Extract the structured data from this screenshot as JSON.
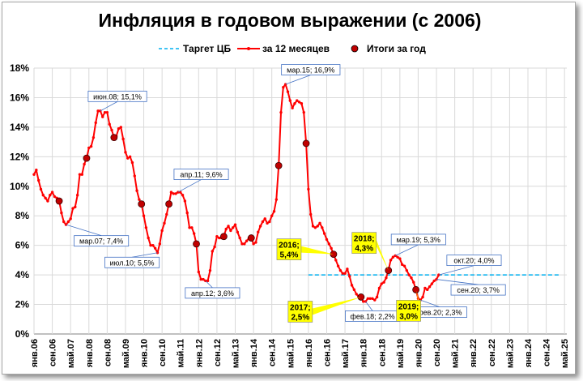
{
  "chart_data": {
    "type": "line",
    "title": "Инфляция в годовом выражении (с 2006)",
    "xlabel": "",
    "ylabel": "",
    "ylim": [
      0,
      18
    ],
    "yticks": [
      "0%",
      "2%",
      "4%",
      "6%",
      "8%",
      "10%",
      "12%",
      "14%",
      "16%",
      "18%"
    ],
    "xticks": [
      "янв.06",
      "сен.06",
      "май.07",
      "янв.08",
      "сен.08",
      "май.09",
      "янв.10",
      "сен.10",
      "май.11",
      "янв.12",
      "сен.12",
      "май.13",
      "янв.14",
      "сен.14",
      "май.15",
      "янв.16",
      "сен.16",
      "май.17",
      "янв.18",
      "сен.18",
      "май.19",
      "янв.20",
      "сен.20",
      "май.21",
      "янв.22",
      "сен.22",
      "май.23",
      "янв.24",
      "сен.24",
      "май.25"
    ],
    "grid": true,
    "legend_position": "top",
    "legend": {
      "target": "Таргет ЦБ",
      "monthly": "за 12 месяцев",
      "yearly": "Итоги за год"
    },
    "colors": {
      "monthly": "#ff0000",
      "target": "#00b0f0",
      "yearly": "#c00000",
      "yellow_box": "#ffff00"
    },
    "target_line": {
      "y": 4.0,
      "x_from": 120,
      "x_to": 230
    },
    "series": [
      {
        "name": "за 12 месяцев",
        "x_unit": "months since янв.06",
        "values": [
          10.8,
          11.1,
          10.4,
          9.8,
          9.4,
          9.2,
          9.0,
          9.4,
          9.6,
          9.3,
          9.2,
          9.0,
          8.2,
          7.6,
          7.4,
          7.6,
          7.8,
          8.5,
          8.6,
          9.4,
          10.8,
          10.8,
          11.5,
          11.9,
          12.6,
          12.7,
          13.3,
          14.3,
          15.1,
          15.1,
          14.7,
          15.0,
          15.0,
          14.2,
          13.8,
          13.3,
          13.4,
          13.9,
          14.0,
          13.2,
          12.3,
          11.9,
          12.0,
          11.6,
          10.7,
          9.7,
          9.1,
          8.8,
          8.0,
          7.2,
          6.5,
          6.0,
          6.0,
          5.8,
          5.5,
          6.1,
          7.0,
          7.5,
          8.1,
          8.8,
          9.6,
          9.5,
          9.5,
          9.6,
          9.6,
          9.4,
          9.0,
          8.2,
          7.2,
          7.2,
          6.8,
          6.1,
          4.2,
          3.7,
          3.7,
          3.6,
          3.6,
          4.3,
          5.6,
          5.9,
          6.6,
          6.5,
          6.5,
          6.6,
          7.1,
          7.3,
          7.0,
          7.2,
          7.4,
          6.9,
          6.5,
          6.1,
          6.1,
          6.3,
          6.5,
          6.5,
          6.1,
          6.2,
          6.9,
          7.3,
          7.6,
          7.8,
          7.5,
          7.6,
          8.0,
          8.3,
          9.1,
          11.4,
          15.0,
          16.7,
          16.9,
          16.4,
          15.8,
          15.3,
          15.6,
          15.8,
          15.7,
          15.6,
          15.0,
          12.9,
          9.8,
          8.1,
          7.3,
          7.2,
          7.3,
          7.5,
          7.2,
          6.8,
          6.4,
          6.1,
          5.8,
          5.4,
          5.0,
          4.6,
          4.3,
          4.1,
          4.1,
          4.4,
          3.9,
          3.3,
          3.0,
          2.7,
          2.5,
          2.5,
          2.2,
          2.2,
          2.4,
          2.4,
          2.4,
          2.3,
          2.5,
          3.1,
          3.4,
          3.5,
          3.8,
          4.3,
          5.0,
          5.2,
          5.3,
          5.2,
          5.1,
          4.7,
          4.6,
          4.3,
          4.0,
          3.8,
          3.5,
          3.0,
          2.4,
          2.3,
          2.5,
          3.1,
          3.0,
          3.2,
          3.4,
          3.6,
          3.7,
          4.0
        ]
      },
      {
        "name": "Итоги за год",
        "points": [
          {
            "x": 11,
            "y": 9.0
          },
          {
            "x": 23,
            "y": 11.9
          },
          {
            "x": 35,
            "y": 13.3
          },
          {
            "x": 47,
            "y": 8.8
          },
          {
            "x": 59,
            "y": 8.8
          },
          {
            "x": 71,
            "y": 6.1
          },
          {
            "x": 83,
            "y": 6.6
          },
          {
            "x": 95,
            "y": 6.5
          },
          {
            "x": 107,
            "y": 11.4
          },
          {
            "x": 119,
            "y": 12.9
          },
          {
            "x": 131,
            "y": 5.4
          },
          {
            "x": 143,
            "y": 2.5
          },
          {
            "x": 155,
            "y": 4.3
          },
          {
            "x": 167,
            "y": 3.0
          }
        ]
      }
    ],
    "annotations": [
      {
        "label": "мар.07; 7,4%",
        "x": 14,
        "y": 7.4
      },
      {
        "label": "июн.08; 15,1%",
        "x": 29,
        "y": 15.1
      },
      {
        "label": "июл.10; 5,5%",
        "x": 54,
        "y": 5.5
      },
      {
        "label": "апр.11; 9,6%",
        "x": 63,
        "y": 9.6
      },
      {
        "label": "апр.12; 3,6%",
        "x": 75,
        "y": 3.6
      },
      {
        "label": "мар.15; 16,9%",
        "x": 110,
        "y": 16.9
      },
      {
        "label": "фев.18; 2,2%",
        "x": 145,
        "y": 2.2
      },
      {
        "label": "мар.19; 5,3%",
        "x": 158,
        "y": 5.3
      },
      {
        "label": "окт.20; 4,0%",
        "x": 177,
        "y": 4.0
      },
      {
        "label": "сен.20; 3,7%",
        "x": 176,
        "y": 3.7
      },
      {
        "label": "фев.20; 2,3%",
        "x": 169,
        "y": 2.3
      }
    ],
    "year_boxes": [
      {
        "line1": "2016;",
        "line2": "5,4%",
        "x": 131,
        "y": 5.4
      },
      {
        "line1": "2018;",
        "line2": "4,3%",
        "x": 155,
        "y": 4.3
      },
      {
        "line1": "2017;",
        "line2": "2,5%",
        "x": 143,
        "y": 2.5
      },
      {
        "line1": "2019;",
        "line2": "3,0%",
        "x": 167,
        "y": 3.0
      }
    ]
  }
}
